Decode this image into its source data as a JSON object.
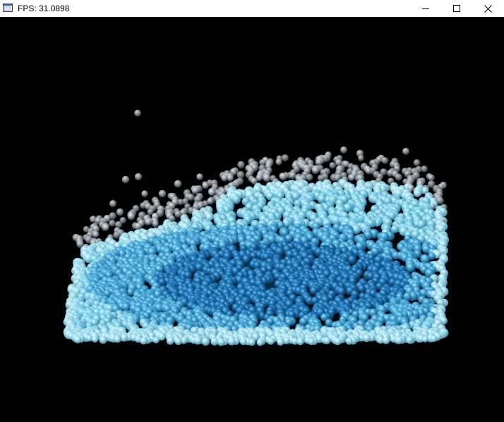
{
  "window": {
    "title": "FPS: 31.0898",
    "icon": "app-window-icon"
  },
  "caption_buttons": {
    "minimize": "minimize-icon",
    "maximize": "maximize-icon",
    "close": "close-icon"
  },
  "scene": {
    "description_type": "particle-fluid-simulation",
    "background_color": "#000000",
    "particle_color_light": "#7fd3ea",
    "particle_color_deep": "#1672b4",
    "particle_color_spray": "#c4ccd2"
  }
}
